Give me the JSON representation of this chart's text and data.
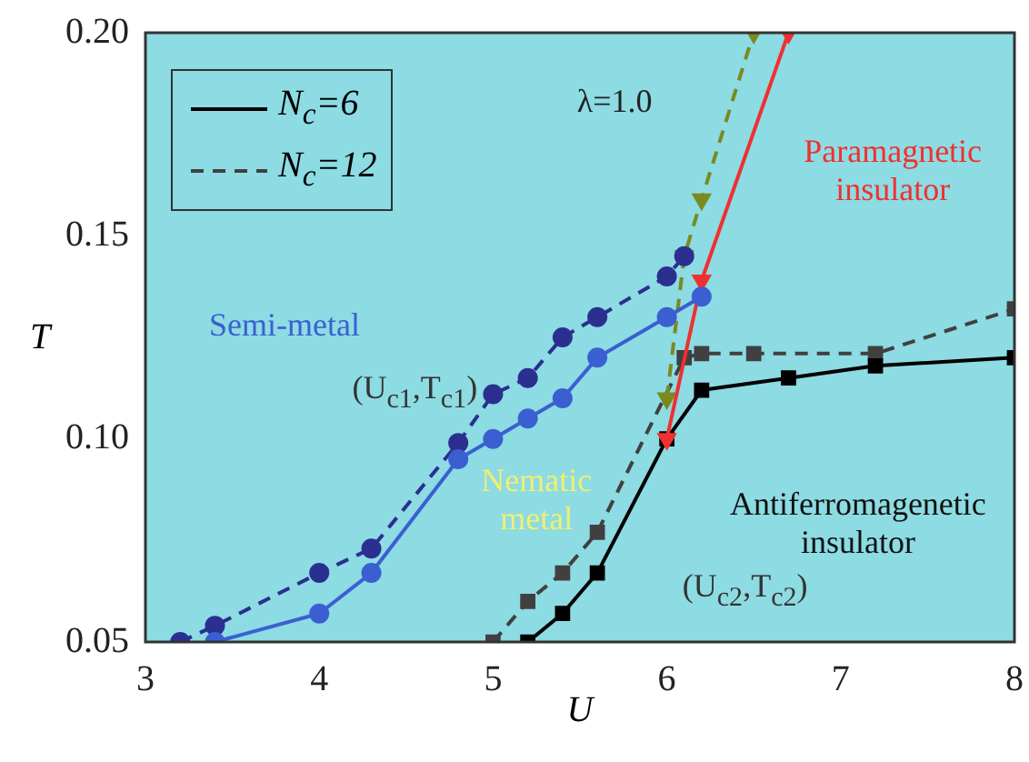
{
  "chart_data": {
    "type": "line",
    "xlabel": "U",
    "ylabel": "T",
    "xlim": [
      3,
      8
    ],
    "ylim": [
      0.05,
      0.2
    ],
    "xticks": [
      3,
      4,
      5,
      6,
      7,
      8
    ],
    "yticks": [
      {
        "value": 0.05,
        "label": "0.05"
      },
      {
        "value": 0.1,
        "label": "0.10"
      },
      {
        "value": 0.15,
        "label": "0.15"
      },
      {
        "value": 0.2,
        "label": "0.20"
      }
    ],
    "grid": false,
    "legend": "top left",
    "annotations": [
      "λ=1.0",
      "Semi-metal",
      "Paramagnetic insulator",
      "Nematic metal",
      "Antiferromagenetic insulator",
      "(U$_{c1}$,T$_{c1}$)",
      "(U$_{c2}$,T$_{c2}$)"
    ],
    "series": [
      {
        "color": "#3b5fd0",
        "line_style": "solid",
        "marker": "circle",
        "x": [
          3.4,
          4.0,
          4.3,
          4.8,
          5.0,
          5.2,
          5.4,
          5.6,
          6.0,
          6.2
        ],
        "values": [
          0.05,
          0.057,
          0.067,
          0.095,
          0.1,
          0.105,
          0.11,
          0.12,
          0.13,
          0.135
        ]
      },
      {
        "color": "#2b2f90",
        "line_style": "dashed",
        "marker": "circle",
        "x": [
          3.2,
          3.4,
          4.0,
          4.3,
          4.8,
          5.0,
          5.2,
          5.4,
          5.6,
          6.0,
          6.1
        ],
        "values": [
          0.05,
          0.054,
          0.067,
          0.073,
          0.099,
          0.111,
          0.115,
          0.125,
          0.13,
          0.14,
          0.145
        ]
      },
      {
        "color": "#f03030",
        "line_style": "solid",
        "marker": "triangle",
        "x": [
          6.0,
          6.2,
          6.7
        ],
        "values": [
          0.1,
          0.139,
          0.2
        ]
      },
      {
        "color": "#7a8a20",
        "line_style": "dashed",
        "marker": "triangle",
        "x": [
          6.0,
          6.1,
          6.2,
          6.5
        ],
        "values": [
          0.11,
          0.145,
          0.159,
          0.2
        ]
      },
      {
        "name": "N$_{c}$=6",
        "color": "#000000",
        "line_style": "solid",
        "marker": "square",
        "x": [
          5.2,
          5.4,
          5.6,
          6.0,
          6.2,
          6.7,
          7.2,
          8.0
        ],
        "values": [
          0.05,
          0.057,
          0.067,
          0.1,
          0.112,
          0.115,
          0.118,
          0.12
        ]
      },
      {
        "name": "N$_{c}$=12",
        "color": "#404040",
        "line_style": "dashed",
        "marker": "square",
        "x": [
          5.0,
          5.2,
          5.4,
          5.6,
          6.1,
          6.2,
          6.5,
          7.2,
          8.0
        ],
        "values": [
          0.05,
          0.06,
          0.067,
          0.077,
          0.12,
          0.121,
          0.121,
          0.121,
          0.132
        ]
      }
    ]
  }
}
